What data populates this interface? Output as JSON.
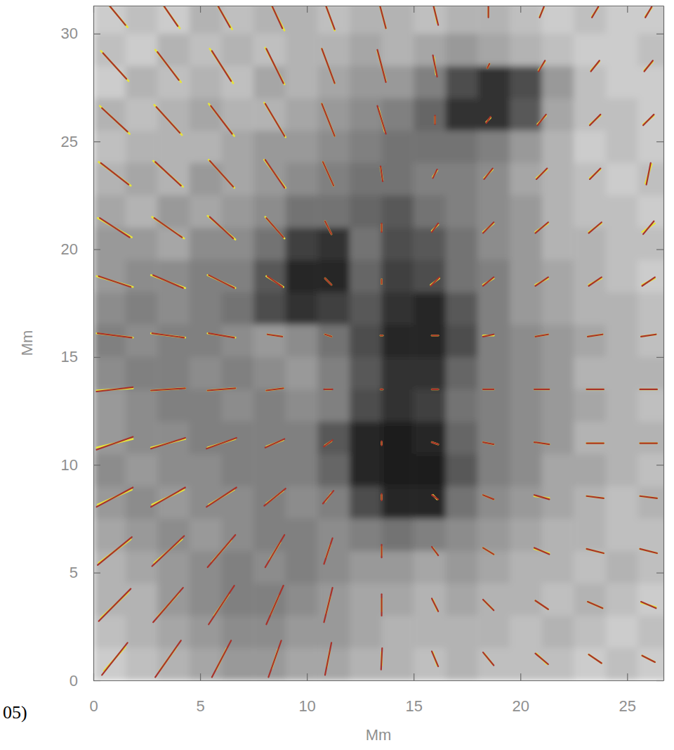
{
  "chart_data": {
    "type": "quiver",
    "x_label": "Mm",
    "y_label": "Mm",
    "xlim": [
      0,
      26.7
    ],
    "ylim": [
      0,
      31.3
    ],
    "xticks": [
      0,
      5,
      10,
      15,
      20,
      25
    ],
    "yticks": [
      0,
      5,
      10,
      15,
      20,
      25,
      30
    ],
    "grid": false,
    "annotations": [
      {
        "text": "05)"
      }
    ],
    "image": {
      "zlim": [
        0,
        1
      ],
      "x": [
        0.75,
        2.25,
        3.75,
        5.25,
        6.75,
        8.25,
        9.75,
        11.25,
        12.75,
        14.25,
        15.75,
        17.25,
        18.75,
        20.25,
        21.75,
        23.25,
        24.75,
        26.25
      ],
      "y": [
        30.75,
        29.25,
        27.75,
        26.25,
        24.75,
        23.25,
        21.75,
        20.25,
        18.75,
        17.25,
        15.75,
        14.25,
        12.75,
        11.25,
        9.75,
        8.25,
        6.75,
        5.25,
        3.75,
        2.25,
        0.75
      ],
      "z": [
        [
          0.8,
          0.75,
          0.8,
          0.7,
          0.75,
          0.7,
          0.7,
          0.75,
          0.7,
          0.7,
          0.75,
          0.7,
          0.7,
          0.75,
          0.8,
          0.75,
          0.8,
          0.8
        ],
        [
          0.75,
          0.8,
          0.7,
          0.75,
          0.7,
          0.75,
          0.7,
          0.7,
          0.65,
          0.7,
          0.65,
          0.6,
          0.65,
          0.7,
          0.75,
          0.8,
          0.8,
          0.75
        ],
        [
          0.8,
          0.7,
          0.75,
          0.7,
          0.75,
          0.65,
          0.7,
          0.65,
          0.6,
          0.6,
          0.5,
          0.3,
          0.2,
          0.3,
          0.6,
          0.75,
          0.8,
          0.8
        ],
        [
          0.7,
          0.75,
          0.7,
          0.65,
          0.7,
          0.7,
          0.65,
          0.6,
          0.55,
          0.5,
          0.4,
          0.2,
          0.2,
          0.35,
          0.65,
          0.75,
          0.75,
          0.8
        ],
        [
          0.75,
          0.7,
          0.7,
          0.7,
          0.65,
          0.6,
          0.6,
          0.55,
          0.5,
          0.45,
          0.45,
          0.45,
          0.5,
          0.6,
          0.7,
          0.8,
          0.75,
          0.8
        ],
        [
          0.7,
          0.65,
          0.7,
          0.6,
          0.65,
          0.6,
          0.55,
          0.5,
          0.45,
          0.45,
          0.5,
          0.5,
          0.55,
          0.65,
          0.7,
          0.75,
          0.8,
          0.75
        ],
        [
          0.65,
          0.7,
          0.6,
          0.65,
          0.6,
          0.55,
          0.45,
          0.45,
          0.4,
          0.35,
          0.45,
          0.5,
          0.55,
          0.6,
          0.7,
          0.75,
          0.75,
          0.8
        ],
        [
          0.6,
          0.6,
          0.65,
          0.55,
          0.55,
          0.45,
          0.25,
          0.2,
          0.45,
          0.3,
          0.35,
          0.45,
          0.55,
          0.6,
          0.7,
          0.7,
          0.75,
          0.75
        ],
        [
          0.6,
          0.55,
          0.55,
          0.5,
          0.5,
          0.35,
          0.15,
          0.15,
          0.4,
          0.25,
          0.3,
          0.45,
          0.5,
          0.6,
          0.65,
          0.7,
          0.75,
          0.8
        ],
        [
          0.55,
          0.5,
          0.55,
          0.5,
          0.45,
          0.3,
          0.2,
          0.25,
          0.35,
          0.2,
          0.15,
          0.35,
          0.5,
          0.6,
          0.65,
          0.7,
          0.7,
          0.75
        ],
        [
          0.5,
          0.55,
          0.5,
          0.5,
          0.55,
          0.6,
          0.55,
          0.45,
          0.3,
          0.15,
          0.15,
          0.3,
          0.5,
          0.55,
          0.6,
          0.65,
          0.7,
          0.75
        ],
        [
          0.55,
          0.5,
          0.5,
          0.55,
          0.5,
          0.55,
          0.6,
          0.5,
          0.35,
          0.2,
          0.2,
          0.4,
          0.5,
          0.55,
          0.6,
          0.7,
          0.7,
          0.7
        ],
        [
          0.6,
          0.55,
          0.5,
          0.5,
          0.55,
          0.5,
          0.55,
          0.5,
          0.3,
          0.2,
          0.25,
          0.45,
          0.5,
          0.55,
          0.6,
          0.65,
          0.7,
          0.75
        ],
        [
          0.6,
          0.55,
          0.55,
          0.5,
          0.5,
          0.5,
          0.5,
          0.35,
          0.15,
          0.1,
          0.15,
          0.4,
          0.5,
          0.55,
          0.6,
          0.7,
          0.7,
          0.7
        ],
        [
          0.55,
          0.6,
          0.55,
          0.55,
          0.5,
          0.5,
          0.5,
          0.4,
          0.15,
          0.1,
          0.1,
          0.35,
          0.5,
          0.55,
          0.65,
          0.65,
          0.7,
          0.75
        ],
        [
          0.6,
          0.55,
          0.6,
          0.55,
          0.55,
          0.5,
          0.55,
          0.5,
          0.3,
          0.15,
          0.15,
          0.45,
          0.55,
          0.6,
          0.65,
          0.7,
          0.75,
          0.7
        ],
        [
          0.65,
          0.6,
          0.55,
          0.6,
          0.55,
          0.5,
          0.5,
          0.55,
          0.5,
          0.45,
          0.5,
          0.55,
          0.6,
          0.65,
          0.7,
          0.7,
          0.75,
          0.75
        ],
        [
          0.7,
          0.65,
          0.6,
          0.55,
          0.5,
          0.55,
          0.5,
          0.55,
          0.6,
          0.6,
          0.65,
          0.6,
          0.65,
          0.7,
          0.7,
          0.75,
          0.7,
          0.75
        ],
        [
          0.7,
          0.7,
          0.6,
          0.55,
          0.5,
          0.5,
          0.55,
          0.6,
          0.65,
          0.65,
          0.7,
          0.65,
          0.7,
          0.7,
          0.75,
          0.7,
          0.75,
          0.8
        ],
        [
          0.75,
          0.7,
          0.65,
          0.6,
          0.55,
          0.55,
          0.6,
          0.6,
          0.65,
          0.7,
          0.7,
          0.7,
          0.7,
          0.75,
          0.7,
          0.75,
          0.8,
          0.75
        ],
        [
          0.8,
          0.75,
          0.7,
          0.65,
          0.6,
          0.6,
          0.65,
          0.65,
          0.7,
          0.7,
          0.75,
          0.7,
          0.75,
          0.75,
          0.75,
          0.8,
          0.75,
          0.8
        ]
      ]
    },
    "x": [
      1,
      3.5,
      6,
      8.5,
      11,
      13.5,
      16,
      18.5,
      21,
      23.5,
      26
    ],
    "y": [
      1,
      3.5,
      6,
      8.5,
      11,
      13.5,
      16,
      18.5,
      21,
      23.5,
      26,
      28.5,
      31
    ],
    "series": [
      {
        "color": "#e6e43c",
        "u": [
          [
            1.0,
            0.8,
            0.5,
            0.3,
            0.15,
            0.0,
            -0.2,
            -0.4,
            -0.5,
            -0.6,
            -0.6
          ],
          [
            1.3,
            1.0,
            0.7,
            0.4,
            0.2,
            0.0,
            -0.2,
            -0.4,
            -0.6,
            -0.7,
            -0.7
          ],
          [
            1.5,
            1.3,
            0.9,
            0.5,
            0.2,
            0.0,
            -0.2,
            -0.5,
            -0.7,
            -0.8,
            -0.8
          ],
          [
            1.6,
            1.5,
            1.2,
            0.8,
            0.3,
            0.0,
            -0.2,
            -0.5,
            -0.7,
            -0.8,
            -0.8
          ],
          [
            1.7,
            1.6,
            1.3,
            0.8,
            0.3,
            0.0,
            -0.3,
            -0.5,
            -0.7,
            -0.8,
            -0.8
          ],
          [
            1.7,
            1.6,
            1.3,
            0.8,
            0.3,
            0.1,
            -0.3,
            -0.5,
            -0.7,
            -0.8,
            -0.8
          ],
          [
            1.7,
            1.6,
            1.3,
            0.7,
            0.3,
            0.1,
            -0.3,
            -0.5,
            -0.6,
            -0.7,
            -0.7
          ],
          [
            1.7,
            1.6,
            1.3,
            0.8,
            0.3,
            0.0,
            -0.4,
            -0.5,
            -0.6,
            -0.6,
            -0.6
          ],
          [
            1.6,
            1.5,
            1.3,
            0.9,
            0.3,
            0.0,
            -0.3,
            -0.5,
            -0.6,
            -0.6,
            -0.6
          ],
          [
            1.5,
            1.4,
            1.2,
            1.0,
            0.5,
            0.1,
            -0.2,
            -0.4,
            -0.5,
            -0.5,
            -0.3
          ],
          [
            1.4,
            1.3,
            1.2,
            1.0,
            0.6,
            0.3,
            0.0,
            -0.2,
            -0.4,
            -0.5,
            -0.5
          ],
          [
            1.3,
            1.2,
            1.1,
            0.9,
            0.6,
            0.4,
            0.1,
            -0.1,
            -0.3,
            -0.4,
            -0.4
          ],
          [
            1.2,
            1.1,
            1.0,
            0.9,
            0.6,
            0.4,
            0.2,
            0.0,
            -0.2,
            -0.3,
            -0.3
          ]
        ],
        "v": [
          [
            1.1,
            1.1,
            1.0,
            0.9,
            0.8,
            0.6,
            0.6,
            0.5,
            0.5,
            0.4,
            0.3
          ],
          [
            1.2,
            1.1,
            1.0,
            0.9,
            0.8,
            0.6,
            0.5,
            0.4,
            0.4,
            0.3,
            0.2
          ],
          [
            1.1,
            1.1,
            1.0,
            0.8,
            0.6,
            0.4,
            0.3,
            0.3,
            0.2,
            0.2,
            0.2
          ],
          [
            0.7,
            0.7,
            0.7,
            0.6,
            0.4,
            0.2,
            0.2,
            0.2,
            0.1,
            0.1,
            0.1
          ],
          [
            0.4,
            0.4,
            0.4,
            0.3,
            0.2,
            0.1,
            0.1,
            0.1,
            0.1,
            0.0,
            0.0
          ],
          [
            0.1,
            0.1,
            0.1,
            0.1,
            0.0,
            0.0,
            0.0,
            0.0,
            0.0,
            0.0,
            0.0
          ],
          [
            -0.2,
            -0.2,
            -0.2,
            -0.1,
            -0.1,
            0.0,
            0.0,
            0.0,
            -0.1,
            -0.1,
            -0.1
          ],
          [
            -0.5,
            -0.6,
            -0.6,
            -0.5,
            -0.3,
            -0.2,
            -0.3,
            -0.3,
            -0.3,
            -0.3,
            -0.3
          ],
          [
            -0.9,
            -1.0,
            -1.1,
            -1.0,
            -0.6,
            -0.3,
            -0.3,
            -0.4,
            -0.4,
            -0.4,
            -0.4
          ],
          [
            -1.1,
            -1.2,
            -1.3,
            -1.3,
            -1.1,
            -0.6,
            -0.3,
            -0.4,
            -0.4,
            -0.4,
            -0.9
          ],
          [
            -1.3,
            -1.4,
            -1.5,
            -1.6,
            -1.5,
            -1.1,
            -0.3,
            -0.2,
            -0.4,
            -0.4,
            -0.4
          ],
          [
            -1.4,
            -1.5,
            -1.6,
            -1.7,
            -1.6,
            -1.4,
            -0.8,
            -0.2,
            -0.4,
            -0.4,
            -0.4
          ],
          [
            -1.4,
            -1.5,
            -1.6,
            -1.7,
            -1.7,
            -1.5,
            -1.0,
            -0.4,
            -0.4,
            -0.4,
            -0.4
          ]
        ]
      },
      {
        "color": "#a8322a",
        "u": [
          [
            1.2,
            1.2,
            0.9,
            0.6,
            0.3,
            0.05,
            -0.3,
            -0.5,
            -0.6,
            -0.6,
            -0.6
          ],
          [
            1.5,
            1.4,
            1.2,
            0.8,
            0.4,
            0.0,
            -0.3,
            -0.5,
            -0.6,
            -0.7,
            -0.7
          ],
          [
            1.6,
            1.5,
            1.3,
            0.9,
            0.4,
            0.0,
            -0.3,
            -0.5,
            -0.7,
            -0.8,
            -0.8
          ],
          [
            1.7,
            1.6,
            1.4,
            1.0,
            0.5,
            0.0,
            -0.3,
            -0.5,
            -0.7,
            -0.8,
            -0.8
          ],
          [
            1.7,
            1.6,
            1.4,
            0.9,
            0.4,
            0.0,
            -0.3,
            -0.5,
            -0.7,
            -0.8,
            -0.8
          ],
          [
            1.7,
            1.6,
            1.3,
            0.8,
            0.4,
            0.1,
            -0.3,
            -0.5,
            -0.7,
            -0.8,
            -0.8
          ],
          [
            1.6,
            1.5,
            1.2,
            0.7,
            0.3,
            0.1,
            -0.3,
            -0.5,
            -0.6,
            -0.7,
            -0.7
          ],
          [
            1.5,
            1.4,
            1.2,
            0.7,
            0.3,
            0.0,
            -0.4,
            -0.5,
            -0.6,
            -0.6,
            -0.6
          ],
          [
            1.4,
            1.3,
            1.1,
            0.8,
            0.3,
            0.0,
            -0.3,
            -0.5,
            -0.6,
            -0.6,
            -0.5
          ],
          [
            1.3,
            1.2,
            1.1,
            0.9,
            0.5,
            0.1,
            -0.2,
            -0.4,
            -0.5,
            -0.5,
            -0.2
          ],
          [
            1.2,
            1.1,
            1.0,
            0.9,
            0.6,
            0.4,
            0.0,
            -0.2,
            -0.4,
            -0.5,
            -0.5
          ],
          [
            1.1,
            1.0,
            0.9,
            0.8,
            0.6,
            0.4,
            0.2,
            -0.1,
            -0.3,
            -0.4,
            -0.4
          ],
          [
            1.0,
            0.9,
            0.8,
            0.7,
            0.6,
            0.4,
            0.3,
            0.0,
            -0.2,
            -0.3,
            -0.3
          ]
        ],
        "v": [
          [
            1.5,
            1.7,
            1.7,
            1.7,
            1.5,
            1.0,
            0.7,
            0.6,
            0.5,
            0.4,
            0.3
          ],
          [
            1.5,
            1.6,
            1.8,
            1.8,
            1.6,
            1.0,
            0.6,
            0.5,
            0.4,
            0.3,
            0.3
          ],
          [
            1.3,
            1.4,
            1.5,
            1.5,
            1.2,
            0.6,
            0.4,
            0.3,
            0.3,
            0.2,
            0.2
          ],
          [
            0.9,
            0.9,
            0.9,
            0.8,
            0.6,
            0.3,
            0.2,
            0.2,
            0.2,
            0.1,
            0.1
          ],
          [
            0.6,
            0.5,
            0.5,
            0.4,
            0.3,
            0.2,
            0.1,
            0.1,
            0.1,
            0.0,
            0.0
          ],
          [
            0.2,
            0.1,
            0.1,
            0.1,
            0.0,
            0.0,
            0.0,
            0.0,
            0.0,
            0.0,
            0.0
          ],
          [
            -0.2,
            -0.2,
            -0.2,
            -0.1,
            -0.1,
            0.0,
            0.0,
            -0.1,
            -0.1,
            -0.1,
            -0.1
          ],
          [
            -0.5,
            -0.6,
            -0.6,
            -0.5,
            -0.3,
            -0.2,
            -0.4,
            -0.4,
            -0.4,
            -0.4,
            -0.4
          ],
          [
            -0.9,
            -0.9,
            -1.0,
            -0.9,
            -0.6,
            -0.4,
            -0.4,
            -0.5,
            -0.5,
            -0.5,
            -0.6
          ],
          [
            -1.0,
            -1.1,
            -1.2,
            -1.3,
            -1.1,
            -0.7,
            -0.4,
            -0.5,
            -0.5,
            -0.5,
            -1.0
          ],
          [
            -1.1,
            -1.2,
            -1.3,
            -1.5,
            -1.5,
            -1.3,
            -0.4,
            -0.3,
            -0.5,
            -0.5,
            -0.5
          ],
          [
            -1.2,
            -1.3,
            -1.4,
            -1.6,
            -1.6,
            -1.5,
            -1.0,
            -0.2,
            -0.5,
            -0.5,
            -0.5
          ],
          [
            -1.2,
            -1.3,
            -1.4,
            -1.5,
            -1.6,
            -1.5,
            -1.2,
            -0.5,
            -0.5,
            -0.5,
            -0.5
          ]
        ]
      }
    ]
  }
}
